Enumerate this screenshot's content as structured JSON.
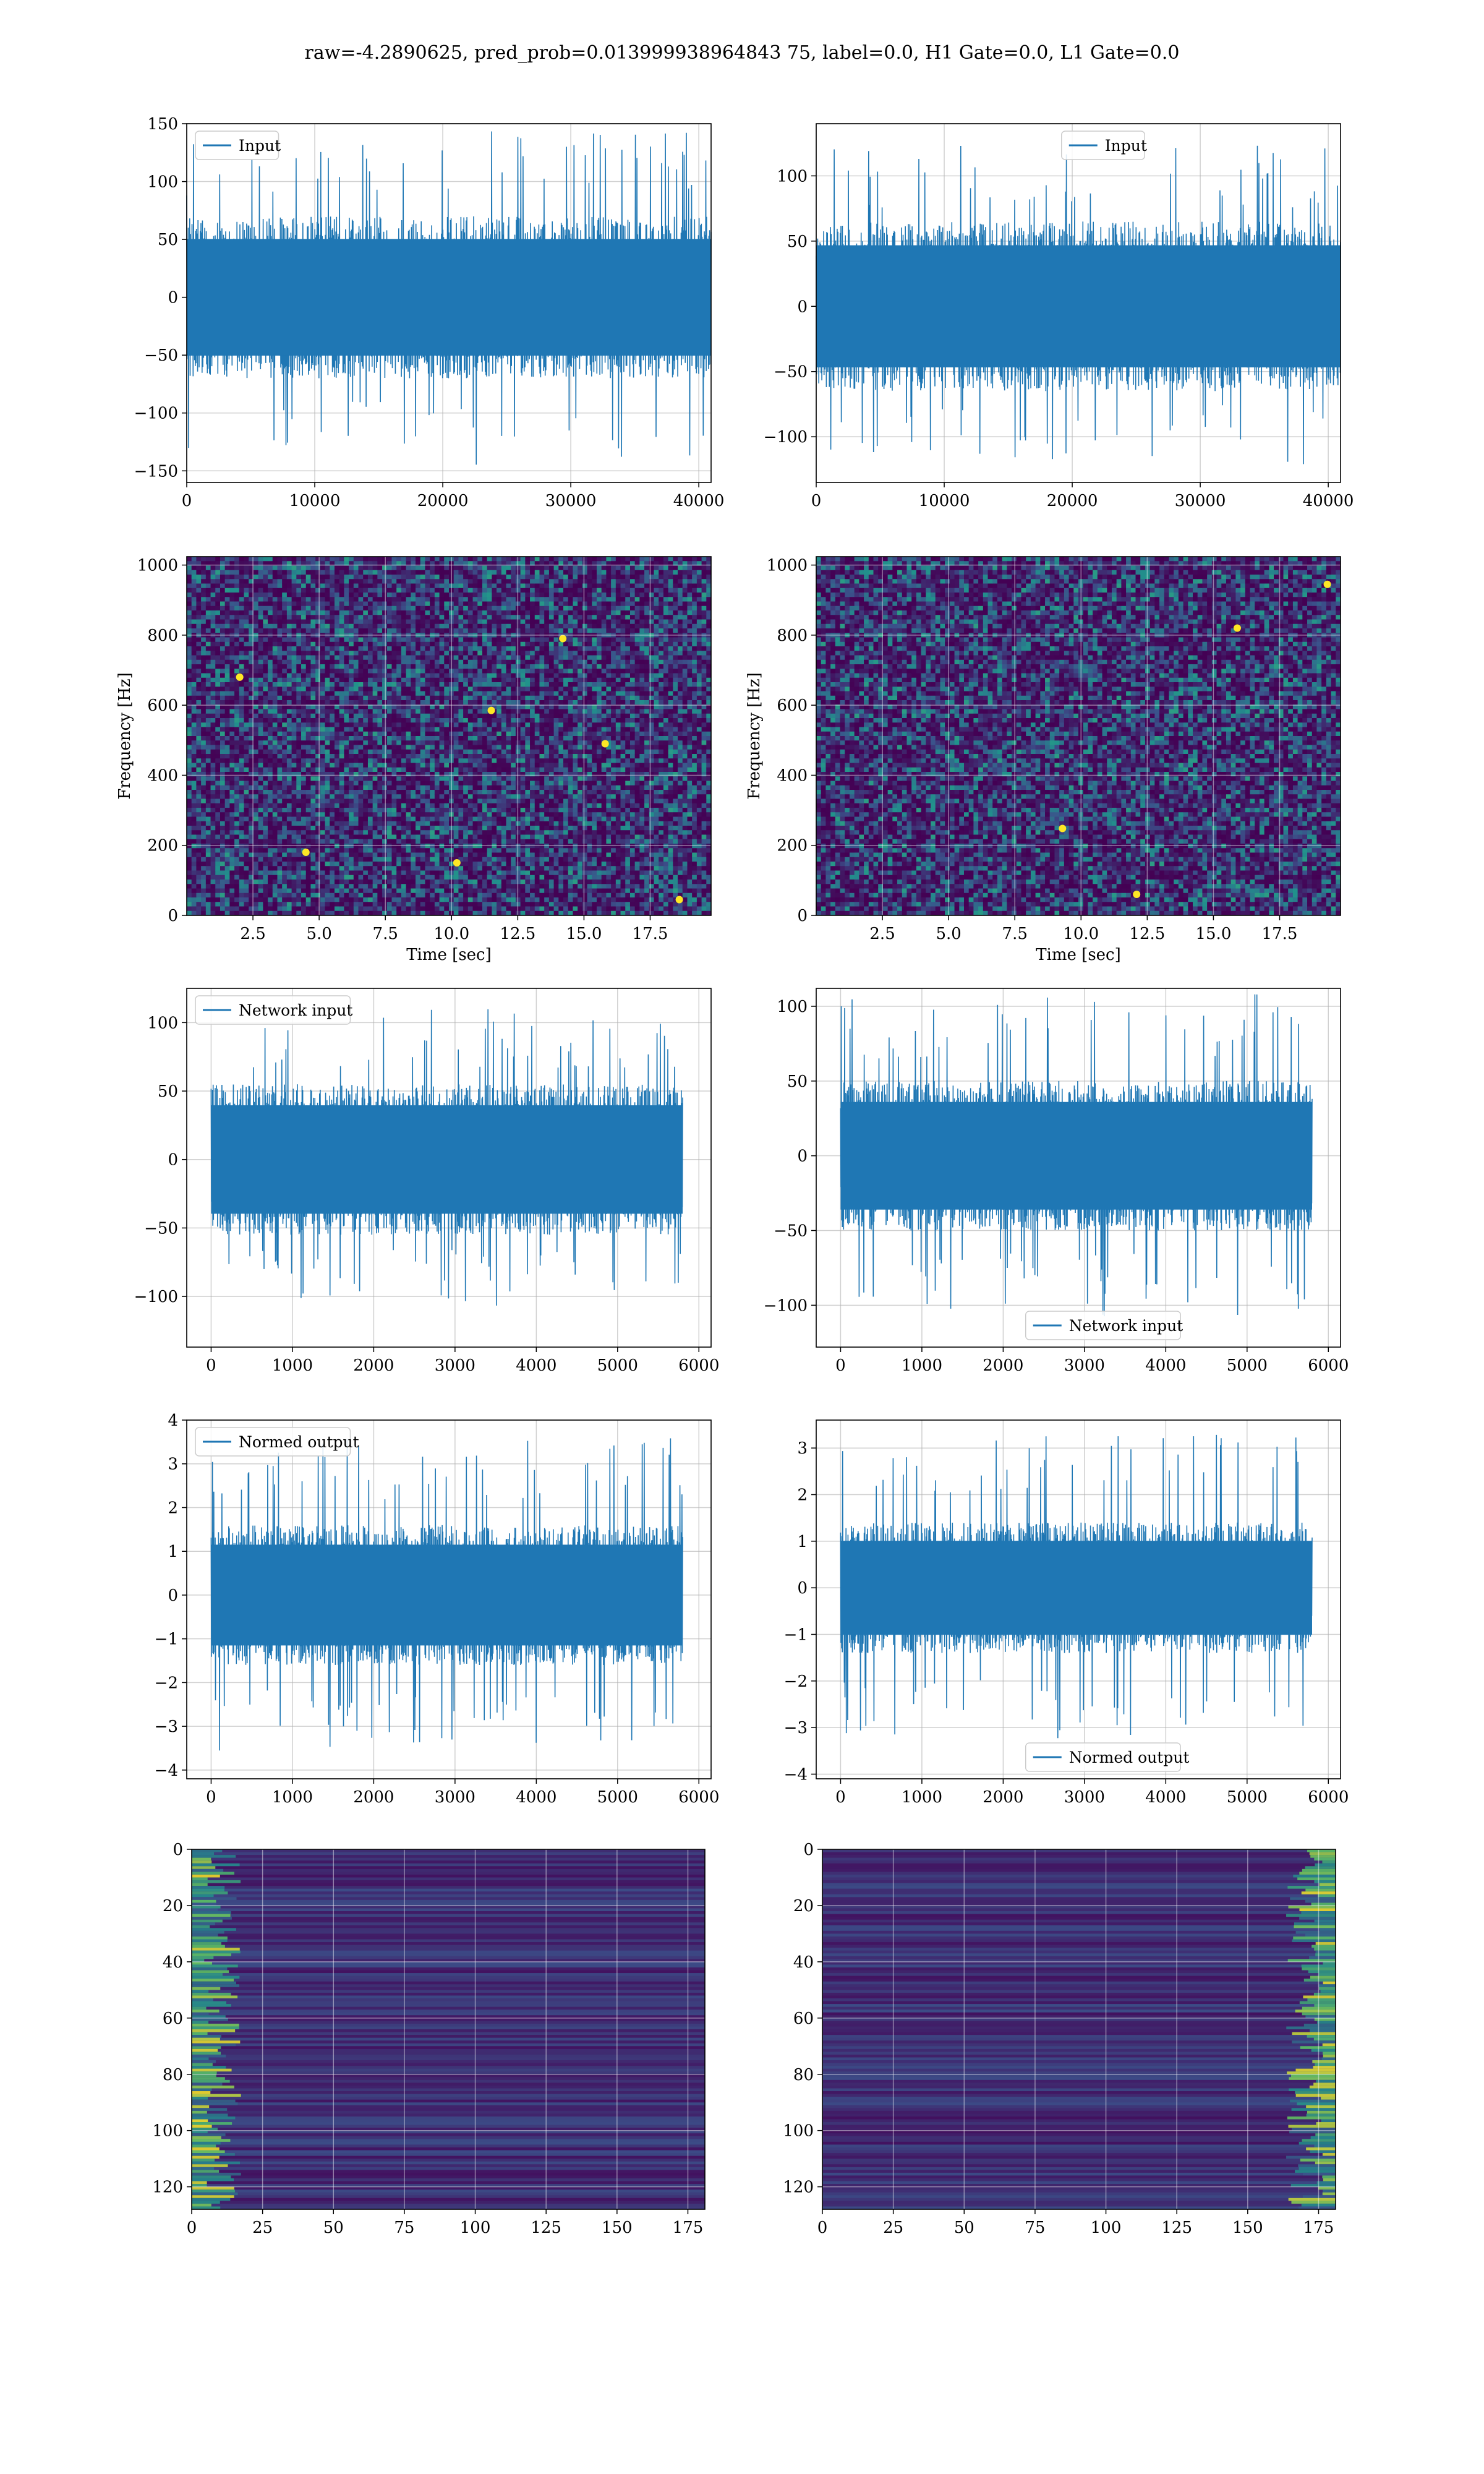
{
  "title": "raw=-4.2890625, pred_prob=0.013999938964843 75, label=0.0, H1 Gate=0.0, L1 Gate=0.0",
  "colors": {
    "line": "#1f77b4",
    "viridis_low": "#440154",
    "viridis_mid": "#21918c",
    "viridis_high": "#fde725",
    "grid": "#b0b0b0"
  },
  "chart_data": [
    {
      "id": "h1-input",
      "type": "line",
      "series": [
        {
          "name": "Input",
          "amplitude": 70,
          "spike": 145
        }
      ],
      "xlim": [
        0,
        40960
      ],
      "ylim": [
        -160,
        150
      ],
      "xticks": [
        0,
        10000,
        20000,
        30000,
        40000
      ],
      "yticks": [
        150,
        100,
        50,
        0,
        -50,
        -100,
        -150
      ],
      "xlabel": "",
      "ylabel": "",
      "legend": "top-left",
      "grid": true
    },
    {
      "id": "l1-input",
      "type": "line",
      "series": [
        {
          "name": "Input",
          "amplitude": 65,
          "spike": 125
        }
      ],
      "xlim": [
        0,
        40960
      ],
      "ylim": [
        -135,
        140
      ],
      "xticks": [
        0,
        10000,
        20000,
        30000,
        40000
      ],
      "yticks": [
        100,
        50,
        0,
        -50,
        -100
      ],
      "xlabel": "",
      "ylabel": "",
      "legend": "top-center",
      "grid": true
    },
    {
      "id": "h1-spectrogram",
      "type": "heatmap",
      "xlim": [
        0,
        19.8
      ],
      "ylim": [
        0,
        1024
      ],
      "xticks": [
        "2.5",
        "5.0",
        "7.5",
        "10.0",
        "12.5",
        "15.0",
        "17.5"
      ],
      "yticks": [
        1000,
        800,
        600,
        400,
        200,
        0
      ],
      "xlabel": "Time [sec]",
      "ylabel": "Frequency [Hz]",
      "grid": true,
      "hot_spots": [
        [
          10.2,
          150
        ],
        [
          15.8,
          490
        ],
        [
          11.5,
          585
        ],
        [
          14.2,
          790
        ],
        [
          18.6,
          45
        ],
        [
          4.5,
          180
        ],
        [
          2.0,
          680
        ]
      ]
    },
    {
      "id": "l1-spectrogram",
      "type": "heatmap",
      "xlim": [
        0,
        19.8
      ],
      "ylim": [
        0,
        1024
      ],
      "xticks": [
        "2.5",
        "5.0",
        "7.5",
        "10.0",
        "12.5",
        "15.0",
        "17.5"
      ],
      "yticks": [
        1000,
        800,
        600,
        400,
        200,
        0
      ],
      "xlabel": "Time [sec]",
      "ylabel": "Frequency [Hz]",
      "grid": true,
      "hot_spots": [
        [
          9.3,
          248
        ],
        [
          12.1,
          60
        ],
        [
          19.3,
          945
        ],
        [
          15.9,
          820
        ]
      ]
    },
    {
      "id": "h1-network-input",
      "type": "line",
      "series": [
        {
          "name": "Network input",
          "amplitude": 55,
          "spike": 110
        }
      ],
      "xlim": [
        -300,
        6150
      ],
      "ylim": [
        -137,
        125
      ],
      "xticks": [
        0,
        1000,
        2000,
        3000,
        4000,
        5000,
        6000
      ],
      "yticks": [
        100,
        50,
        0,
        -50,
        -100
      ],
      "xlabel": "",
      "ylabel": "",
      "legend": "top-left",
      "grid": true
    },
    {
      "id": "l1-network-input",
      "type": "line",
      "series": [
        {
          "name": "Network input",
          "amplitude": 50,
          "spike": 108
        }
      ],
      "xlim": [
        -300,
        6150
      ],
      "ylim": [
        -128,
        112
      ],
      "xticks": [
        0,
        1000,
        2000,
        3000,
        4000,
        5000,
        6000
      ],
      "yticks": [
        100,
        50,
        0,
        -50,
        -100
      ],
      "xlabel": "",
      "ylabel": "",
      "legend": "bottom-center",
      "grid": true
    },
    {
      "id": "h1-normed-output",
      "type": "line",
      "series": [
        {
          "name": "Normed output",
          "amplitude": 1.6,
          "spike": 3.6
        }
      ],
      "xlim": [
        -300,
        6150
      ],
      "ylim": [
        -4.2,
        4
      ],
      "xticks": [
        0,
        1000,
        2000,
        3000,
        4000,
        5000,
        6000
      ],
      "yticks": [
        4,
        3,
        2,
        1,
        0,
        -1,
        -2,
        -3,
        -4
      ],
      "xlabel": "",
      "ylabel": "",
      "legend": "top-left",
      "grid": true
    },
    {
      "id": "l1-normed-output",
      "type": "line",
      "series": [
        {
          "name": "Normed output",
          "amplitude": 1.4,
          "spike": 3.3
        }
      ],
      "xlim": [
        -300,
        6150
      ],
      "ylim": [
        -4.1,
        3.6
      ],
      "xticks": [
        0,
        1000,
        2000,
        3000,
        4000,
        5000,
        6000
      ],
      "yticks": [
        3,
        2,
        1,
        0,
        -1,
        -2,
        -3,
        -4
      ],
      "xlabel": "",
      "ylabel": "",
      "legend": "bottom-center",
      "grid": true
    },
    {
      "id": "h1-feature-map",
      "type": "heatmap",
      "xlim": [
        0,
        181
      ],
      "ylim": [
        128,
        0
      ],
      "xticks": [
        0,
        25,
        50,
        75,
        100,
        125,
        150,
        175
      ],
      "yticks": [
        0,
        20,
        40,
        60,
        80,
        100,
        120
      ],
      "xlabel": "",
      "ylabel": "",
      "grid": true,
      "bright_side": "left"
    },
    {
      "id": "l1-feature-map",
      "type": "heatmap",
      "xlim": [
        0,
        181
      ],
      "ylim": [
        128,
        0
      ],
      "xticks": [
        0,
        25,
        50,
        75,
        100,
        125,
        150,
        175
      ],
      "yticks": [
        0,
        20,
        40,
        60,
        80,
        100,
        120
      ],
      "xlabel": "",
      "ylabel": "",
      "grid": true,
      "bright_side": "right"
    }
  ]
}
